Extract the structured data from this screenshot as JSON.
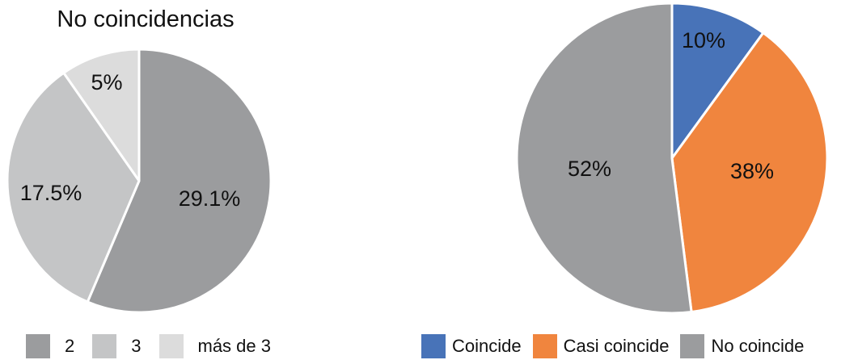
{
  "chart_data": [
    {
      "type": "pie",
      "title": "No coincidencias",
      "categories": [
        "2",
        "3",
        "más de 3"
      ],
      "values": [
        29.1,
        17.5,
        5
      ],
      "labels": [
        "29.1%",
        "17.5%",
        "5%"
      ],
      "colors": [
        "#9b9c9e",
        "#c4c5c6",
        "#dcdcdc"
      ],
      "legend_position": "bottom"
    },
    {
      "type": "pie",
      "title": "",
      "categories": [
        "Coincide",
        "Casi coincide",
        "No coincide"
      ],
      "values": [
        10,
        38,
        52
      ],
      "labels": [
        "10%",
        "38%",
        "52%"
      ],
      "colors": [
        "#4873b8",
        "#f0853e",
        "#9b9c9e"
      ],
      "legend_position": "bottom"
    }
  ]
}
